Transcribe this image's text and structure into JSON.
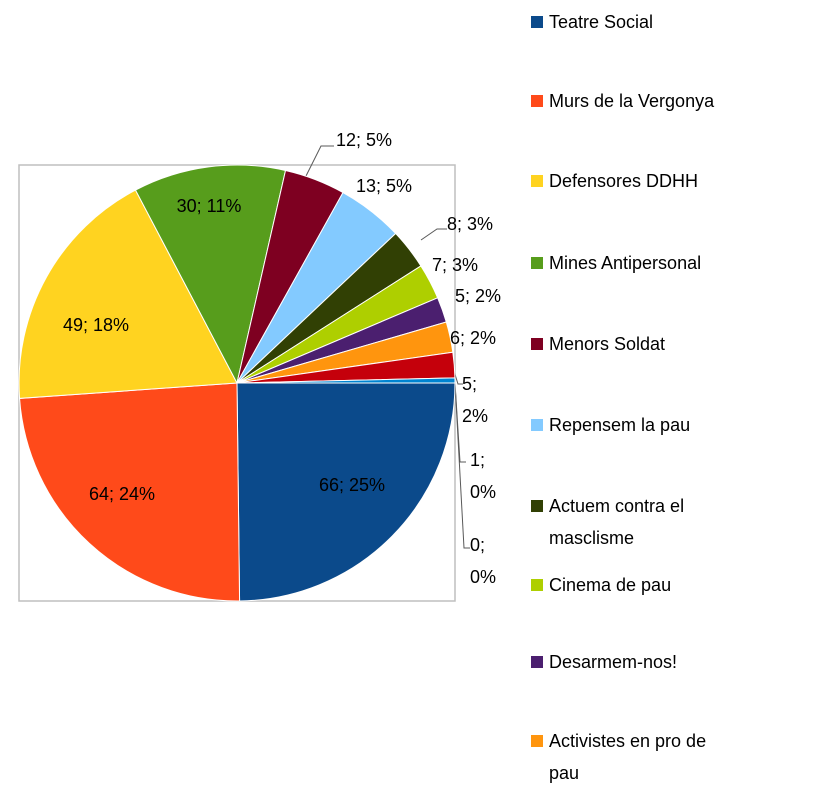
{
  "chart_data": {
    "type": "pie",
    "categories": [
      "Teatre Social",
      "Murs de la Vergonya",
      "Defensores DDHH",
      "Mines Antipersonal",
      "Menors Soldat",
      "Repensem la pau",
      "Actuem contra el masclisme",
      "Cinema de pau",
      "Desarmem-nos!",
      "Activistes en pro de pau",
      null,
      null,
      null
    ],
    "values": [
      66,
      64,
      49,
      30,
      12,
      13,
      8,
      7,
      5,
      6,
      5,
      1,
      0
    ],
    "value_labels": [
      "66; 25%",
      "64; 24%",
      "49; 18%",
      "30; 11%",
      "12; 5%",
      "13; 5%",
      "8; 3%",
      "7; 3%",
      "5; 2%",
      "6; 2%",
      "5; 2%",
      "1; 0%",
      "0; 0%"
    ],
    "colors": [
      "#0b4a8b",
      "#ff4a1a",
      "#ffd320",
      "#579d1c",
      "#7e0021",
      "#83caff",
      "#314004",
      "#aecf00",
      "#4b1f6f",
      "#ff950e",
      "#c5000b",
      "#0084d1",
      "#004586"
    ],
    "legend": "right"
  }
}
